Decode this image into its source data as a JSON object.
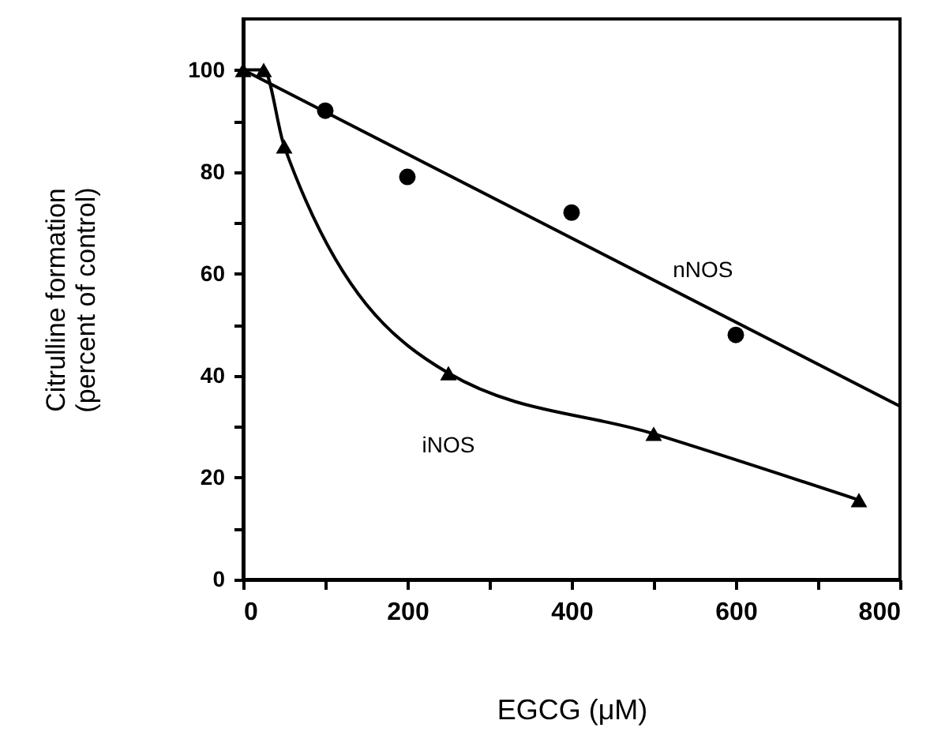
{
  "chart_data": {
    "type": "scatter",
    "xlabel": "EGCG (μM)",
    "ylabel": "Citrulline formation\n(percent of control)",
    "xlim": [
      0,
      800
    ],
    "ylim": [
      0,
      110
    ],
    "xticks": [
      0,
      {
        "value": 100,
        "label": null
      },
      200,
      {
        "value": 300,
        "label": null
      },
      400,
      {
        "value": 500,
        "label": null
      },
      600,
      {
        "value": 700,
        "label": null
      },
      800
    ],
    "yticks": [
      0,
      {
        "value": 10,
        "label": null
      },
      20,
      {
        "value": 30,
        "label": null
      },
      40,
      {
        "value": 50,
        "label": null
      },
      60,
      {
        "value": 70,
        "label": null
      },
      80,
      {
        "value": 90,
        "label": null
      },
      100
    ],
    "grid": false,
    "series": [
      {
        "marker": "circle",
        "color": "#000000",
        "x": [
          100,
          200,
          400,
          600
        ],
        "values": [
          92,
          79,
          72,
          48
        ]
      },
      {
        "type": "line",
        "name": "nNOS",
        "line_style": "solid",
        "color": "#000000",
        "x": [
          0,
          800
        ],
        "values": [
          100,
          34
        ]
      },
      {
        "type": "line",
        "name": "iNOS",
        "marker": "triangle",
        "line_style": "solid",
        "color": "#000000",
        "x": [
          0,
          25,
          50,
          250,
          500,
          750
        ],
        "values": [
          100,
          100,
          85,
          40.5,
          28.6,
          15.6
        ]
      }
    ]
  }
}
